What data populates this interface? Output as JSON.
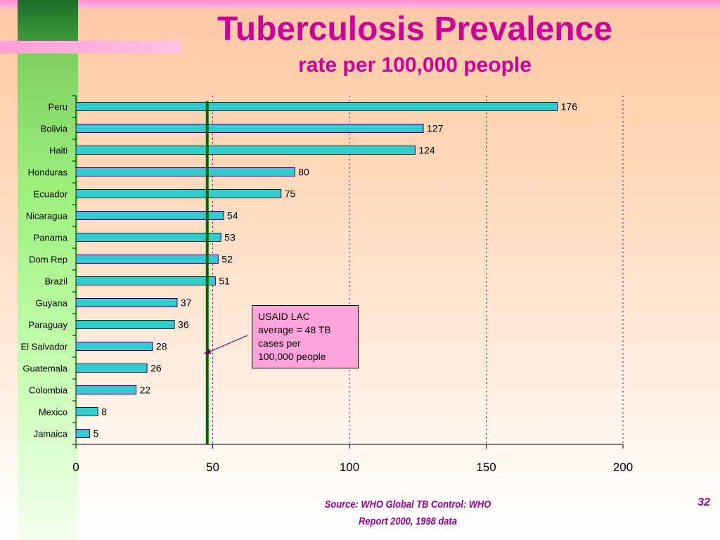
{
  "slide": {
    "title": "Tuberculosis Prevalence",
    "subtitle": "rate per 100,000 people",
    "callout": "USAID LAC\naverage = 48 TB\ncases per\n100,000 people",
    "source": "Source:  WHO Global TB Control:  WHO\nReport 2000, 1998 data",
    "page_number": "32"
  },
  "colors": {
    "title": "#cc0099",
    "bar_fill": "#33cccc",
    "bar_stroke": "#330066",
    "average_line": "#006600",
    "callout_fill": "#ffa3db",
    "source_text": "#990099"
  },
  "chart_data": {
    "type": "bar",
    "orientation": "horizontal",
    "categories": [
      "Peru",
      "Bolivia",
      "Haiti",
      "Honduras",
      "Ecuador",
      "Nicaragua",
      "Panama",
      "Dom Rep",
      "Brazil",
      "Guyana",
      "Paraguay",
      "El Salvador",
      "Guatemala",
      "Colombia",
      "Mexico",
      "Jamaica"
    ],
    "values": [
      176,
      127,
      124,
      80,
      75,
      54,
      53,
      52,
      51,
      37,
      36,
      28,
      26,
      22,
      8,
      5
    ],
    "data_labels": [
      "176",
      "127",
      "124",
      "80",
      "75",
      "54",
      "53",
      "52",
      "51",
      "37",
      "36",
      "28",
      "26",
      "22",
      "8",
      "5"
    ],
    "xlim": [
      0,
      200
    ],
    "xticks": [
      0,
      50,
      100,
      150,
      200
    ],
    "xtick_labels": [
      "0",
      "50",
      "100",
      "150",
      "200"
    ],
    "grid": "vertical dotted",
    "reference_line": {
      "value": 48
    },
    "title": "Tuberculosis Prevalence",
    "subtitle": "rate per 100,000 people"
  }
}
